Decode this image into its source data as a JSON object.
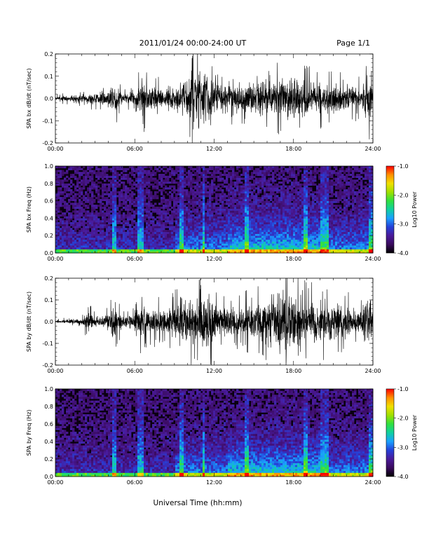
{
  "header": {
    "date_range": "2011/01/24  00:00-24:00 UT",
    "page": "Page 1/1"
  },
  "colors": {
    "trace": "#000000",
    "colorbar_stops": [
      "#000000",
      "#3a0b5e",
      "#4a1a9a",
      "#2540d8",
      "#1aa0ff",
      "#10d0a0",
      "#30e040",
      "#a0e000",
      "#f0e000",
      "#ff9000",
      "#ff0000"
    ]
  },
  "chart_data": [
    {
      "type": "line",
      "ylabel": "SPA bx dB/dt (nT/sec)",
      "xlabel": "",
      "xlim": [
        "00:00",
        "24:00"
      ],
      "ylim": [
        -0.2,
        0.2
      ],
      "x_ticks": [
        "00:00",
        "06:00",
        "12:00",
        "18:00",
        "24:00"
      ],
      "y_ticks": [
        "-0.2",
        "-0.1",
        "0.0",
        "0.1",
        "0.2"
      ],
      "envelope": {
        "hours": [
          0,
          1,
          2,
          3,
          4,
          4.5,
          5,
          6,
          6.5,
          7,
          8,
          9,
          10,
          10.5,
          11,
          11.5,
          12,
          13,
          14,
          15,
          16,
          17,
          18,
          19,
          20,
          21,
          22,
          23,
          23.8,
          24
        ],
        "amplitude": [
          0.015,
          0.02,
          0.025,
          0.04,
          0.05,
          0.1,
          0.04,
          0.04,
          0.12,
          0.09,
          0.07,
          0.09,
          0.12,
          0.2,
          0.2,
          0.2,
          0.11,
          0.08,
          0.09,
          0.1,
          0.11,
          0.12,
          0.14,
          0.11,
          0.1,
          0.09,
          0.08,
          0.07,
          0.18,
          0.03
        ]
      }
    },
    {
      "type": "heatmap",
      "ylabel": "SPA bx Freq (Hz)",
      "xlabel": "",
      "xlim": [
        "00:00",
        "24:00"
      ],
      "ylim": [
        0.0,
        1.0
      ],
      "x_ticks": [
        "00:00",
        "06:00",
        "12:00",
        "18:00",
        "24:00"
      ],
      "y_ticks": [
        "0.0",
        "0.2",
        "0.4",
        "0.6",
        "0.8",
        "1.0"
      ],
      "colorbar": {
        "label": "Log10 Power",
        "range": [
          -4.0,
          -1.0
        ],
        "ticks": [
          "-1.0",
          "-2.0",
          "-3.0",
          "-4.0"
        ]
      },
      "bright_bands_hours": [
        4.4,
        6.3,
        6.6,
        9.5,
        11.2,
        14.5,
        18.9,
        20.2,
        20.5,
        23.8
      ]
    },
    {
      "type": "line",
      "ylabel": "SPA by dB/dt (nT/sec)",
      "xlabel": "",
      "xlim": [
        "00:00",
        "24:00"
      ],
      "ylim": [
        -0.2,
        0.2
      ],
      "x_ticks": [
        "00:00",
        "06:00",
        "12:00",
        "18:00",
        "24:00"
      ],
      "y_ticks": [
        "-0.2",
        "-0.1",
        "0.0",
        "0.1",
        "0.2"
      ],
      "envelope": {
        "hours": [
          0,
          1,
          2,
          2.5,
          3,
          4,
          4.5,
          5,
          6,
          6.5,
          7,
          8,
          9,
          9.5,
          10,
          11,
          11.5,
          12,
          13,
          14,
          15,
          16,
          16.5,
          17,
          17.5,
          18,
          19,
          20,
          21,
          22,
          23,
          23.8,
          24
        ],
        "amplitude": [
          0.01,
          0.015,
          0.02,
          0.07,
          0.03,
          0.05,
          0.12,
          0.04,
          0.06,
          0.11,
          0.08,
          0.09,
          0.1,
          0.15,
          0.14,
          0.16,
          0.2,
          0.11,
          0.09,
          0.1,
          0.11,
          0.14,
          0.2,
          0.2,
          0.2,
          0.18,
          0.14,
          0.13,
          0.12,
          0.1,
          0.08,
          0.2,
          0.03
        ]
      }
    },
    {
      "type": "heatmap",
      "ylabel": "SPA by Freq (Hz)",
      "xlabel": "Universal Time (hh:mm)",
      "xlim": [
        "00:00",
        "24:00"
      ],
      "ylim": [
        0.0,
        1.0
      ],
      "x_ticks": [
        "00:00",
        "06:00",
        "12:00",
        "18:00",
        "24:00"
      ],
      "y_ticks": [
        "0.0",
        "0.2",
        "0.4",
        "0.6",
        "0.8",
        "1.0"
      ],
      "colorbar": {
        "label": "Log10 Power",
        "range": [
          -4.0,
          -1.0
        ],
        "ticks": [
          "-1.0",
          "-2.0",
          "-3.0",
          "-4.0"
        ]
      },
      "bright_bands_hours": [
        4.4,
        6.3,
        6.6,
        9.5,
        11.2,
        14.5,
        18.9,
        20.2,
        20.5,
        23.8
      ]
    }
  ]
}
